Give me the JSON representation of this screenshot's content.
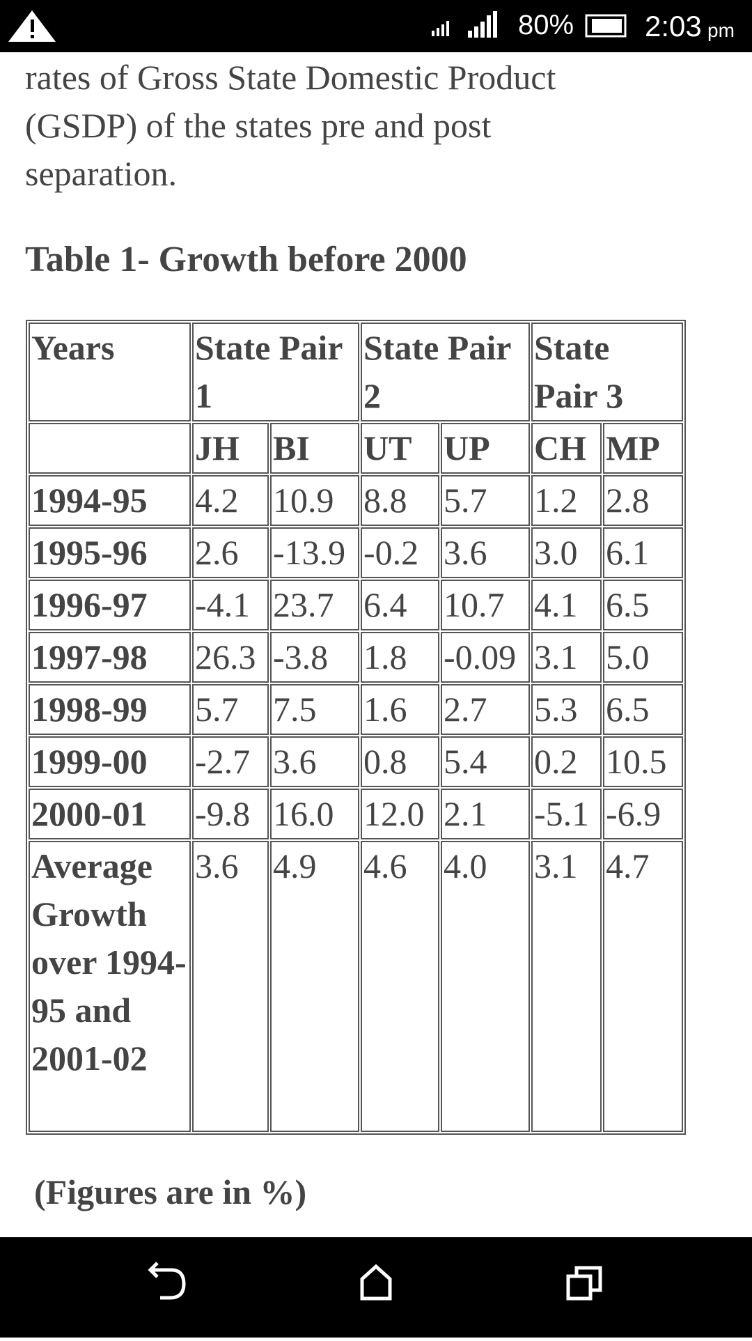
{
  "status_bar": {
    "battery": "80%",
    "time": "2:03",
    "meridiem": "pm"
  },
  "paragraph_lines": [
    "rates of Gross State Domestic Product",
    "(GSDP) of the states pre and post",
    "separation."
  ],
  "table_title": "Table 1- Growth before 2000",
  "table": {
    "header": [
      {
        "text": "Years",
        "span": 1
      },
      {
        "text": "State Pair 1",
        "span": 2
      },
      {
        "text": "State Pair 2",
        "span": 2
      },
      {
        "text": "State Pair 3",
        "span": 2
      }
    ],
    "subheader": [
      "JH",
      "BI",
      "UT",
      "UP",
      "CH",
      "MP"
    ],
    "rows": [
      [
        "1994-95",
        "4.2",
        "10.9",
        "8.8",
        "5.7",
        "1.2",
        "2.8"
      ],
      [
        "1995-96",
        "2.6",
        "-13.9",
        "-0.2",
        "3.6",
        "3.0",
        "6.1"
      ],
      [
        "1996-97",
        "-4.1",
        "23.7",
        "6.4",
        "10.7",
        "4.1",
        "6.5"
      ],
      [
        "1997-98",
        "26.3",
        "-3.8",
        "1.8",
        "-0.09",
        "3.1",
        "5.0"
      ],
      [
        "1998-99",
        "5.7",
        "7.5",
        "1.6",
        "2.7",
        "5.3",
        "6.5"
      ],
      [
        "1999-00",
        "-2.7",
        "3.6",
        "0.8",
        "5.4",
        "0.2",
        "10.5"
      ],
      [
        "2000-01",
        "-9.8",
        "16.0",
        "12.0",
        "2.1",
        "-5.1",
        "-6.9"
      ],
      [
        "Average Growth over 1994-95 and 2001-02",
        "3.6",
        "4.9",
        "4.6",
        "4.0",
        "3.1",
        "4.7"
      ]
    ]
  },
  "note": "(Figures are in %)"
}
